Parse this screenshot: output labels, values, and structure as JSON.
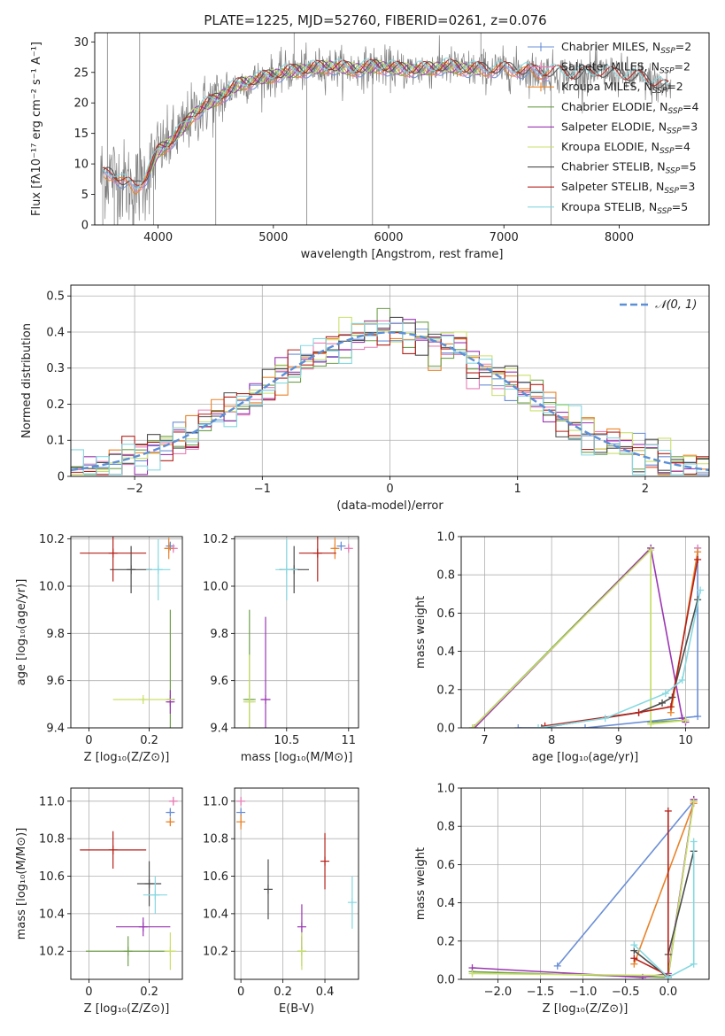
{
  "colors": {
    "chabrier_miles": "#6b8fd6",
    "salpeter_miles": "#e67fb5",
    "kroupa_miles": "#e8832a",
    "chabrier_elodie": "#6ea04a",
    "salpeter_elodie": "#9b37b3",
    "kroupa_elodie": "#c9e06a",
    "chabrier_stelib": "#4d4d4d",
    "salpeter_stelib": "#b5211a",
    "kroupa_stelib": "#86d8e0",
    "spectrum": "#808080",
    "normal_fit": "#5b8fd6"
  },
  "chart_data": [
    {
      "id": "spectrum",
      "type": "line",
      "title": "PLATE=1225, MJD=52760, FIBERID=0261, z=0.076",
      "xlabel": "wavelength [Angstrom, rest frame]",
      "ylabel": "Flux [fλ10⁻¹⁷ erg cm⁻² s⁻¹ A⁻¹]",
      "xlim": [
        3450,
        8780
      ],
      "ylim": [
        0,
        31.5
      ],
      "xticks": [
        4000,
        5000,
        6000,
        7000,
        8000
      ],
      "yticks": [
        0,
        5,
        10,
        15,
        20,
        25,
        30
      ],
      "grid": false,
      "legend": "top-right",
      "legend_entries": [
        {
          "label": "Chabrier MILES, N",
          "sub": "SSP",
          "tail": "=2",
          "color_key": "chabrier_miles"
        },
        {
          "label": "Salpeter MILES, N",
          "sub": "SSP",
          "tail": "=2",
          "color_key": "salpeter_miles"
        },
        {
          "label": "Kroupa MILES, N",
          "sub": "SSP",
          "tail": "=2",
          "color_key": "kroupa_miles"
        },
        {
          "label": "Chabrier ELODIE, N",
          "sub": "SSP",
          "tail": "=4",
          "color_key": "chabrier_elodie"
        },
        {
          "label": "Salpeter ELODIE, N",
          "sub": "SSP",
          "tail": "=3",
          "color_key": "salpeter_elodie"
        },
        {
          "label": "Kroupa ELODIE, N",
          "sub": "SSP",
          "tail": "=4",
          "color_key": "kroupa_elodie"
        },
        {
          "label": "Chabrier STELIB, N",
          "sub": "SSP",
          "tail": "=5",
          "color_key": "chabrier_stelib"
        },
        {
          "label": "Salpeter STELIB, N",
          "sub": "SSP",
          "tail": "=3",
          "color_key": "salpeter_stelib"
        },
        {
          "label": "Kroupa STELIB, N",
          "sub": "SSP",
          "tail": "=5",
          "color_key": "kroupa_stelib"
        }
      ],
      "continuum_x": [
        3500,
        3600,
        3700,
        3800,
        3900,
        4000,
        4100,
        4200,
        4300,
        4400,
        4500,
        4700,
        4900,
        5100,
        5300,
        5500,
        5700,
        5900,
        6100,
        6300,
        6500,
        6700,
        6900,
        7100,
        7300,
        7450,
        7600,
        7800,
        8000,
        8200,
        8400
      ],
      "continuum_y": [
        8,
        8.5,
        7,
        6,
        8,
        12,
        13.5,
        15.5,
        18,
        19.5,
        20.5,
        23,
        24,
        25,
        25.5,
        26,
        25.5,
        26,
        25.5,
        25.5,
        26,
        25.5,
        25.5,
        25.5,
        25,
        25,
        24.5,
        25,
        24.5,
        24,
        22.5
      ]
    },
    {
      "id": "residuals",
      "type": "histogram",
      "xlabel": "(data-model)/error",
      "ylabel": "Normed distribution",
      "xlim": [
        -2.5,
        2.5
      ],
      "ylim": [
        0,
        0.53
      ],
      "xticks": [
        -2,
        -1,
        0,
        1,
        2
      ],
      "yticks": [
        0,
        0.1,
        0.2,
        0.3,
        0.4,
        0.5
      ],
      "grid": true,
      "legend": "top-right",
      "legend_label": "𝒩(0, 1)",
      "bin_width": 0.1
    },
    {
      "id": "age_vs_Z",
      "type": "errorbar",
      "xlabel": "Z [log₁₀(Z/Z⊙)]",
      "ylabel": "age  [log₁₀(age/yr)]",
      "xlim": [
        -0.06,
        0.31
      ],
      "ylim": [
        9.4,
        10.21
      ],
      "xticks": [
        0,
        0.2
      ],
      "yticks": [
        9.4,
        9.6,
        9.8,
        10.0,
        10.2
      ],
      "grid": true,
      "points": [
        {
          "model": "chabrier_miles",
          "x": 0.27,
          "xerr": 0.01,
          "y": 10.17,
          "yerr": 0.015
        },
        {
          "model": "salpeter_miles",
          "x": 0.28,
          "xerr": 0.012,
          "y": 10.16,
          "yerr": 0.012
        },
        {
          "model": "kroupa_miles",
          "x": 0.265,
          "xerr": 0.015,
          "y": 10.16,
          "yerr": 0.045
        },
        {
          "model": "chabrier_elodie",
          "x": 0.27,
          "xerr": 0.01,
          "y": 9.52,
          "yerr": 0.38
        },
        {
          "model": "salpeter_elodie",
          "x": 0.27,
          "xerr": 0.01,
          "y": 9.51,
          "yerr": 0.05
        },
        {
          "model": "kroupa_elodie",
          "x": 0.18,
          "xerr": 0.1,
          "y": 9.52,
          "yerr": 0.01
        },
        {
          "model": "chabrier_stelib",
          "x": 0.14,
          "xerr": 0.07,
          "y": 10.07,
          "yerr": 0.1
        },
        {
          "model": "salpeter_stelib",
          "x": 0.08,
          "xerr": 0.11,
          "y": 10.14,
          "yerr": 0.12
        },
        {
          "model": "kroupa_stelib",
          "x": 0.23,
          "xerr": 0.04,
          "y": 10.07,
          "yerr": 0.13
        }
      ]
    },
    {
      "id": "age_vs_mass",
      "type": "errorbar",
      "xlabel": "mass [log₁₀(M/M⊙)]",
      "xlim": [
        10.08,
        11.08
      ],
      "ylim": [
        9.4,
        10.21
      ],
      "xticks": [
        10.5,
        11.0
      ],
      "yticks": [
        9.4,
        9.6,
        9.8,
        10.0,
        10.2
      ],
      "grid": true,
      "points": [
        {
          "model": "chabrier_miles",
          "x": 10.94,
          "xerr": 0.02,
          "y": 10.17,
          "yerr": 0.015
        },
        {
          "model": "salpeter_miles",
          "x": 11.0,
          "xerr": 0.02,
          "y": 10.16,
          "yerr": 0.012
        },
        {
          "model": "kroupa_miles",
          "x": 10.89,
          "xerr": 0.02,
          "y": 10.16,
          "yerr": 0.045
        },
        {
          "model": "chabrier_elodie",
          "x": 10.2,
          "xerr": 0.05,
          "y": 9.52,
          "yerr": 0.38
        },
        {
          "model": "salpeter_elodie",
          "x": 10.33,
          "xerr": 0.04,
          "y": 9.52,
          "yerr": 0.35
        },
        {
          "model": "kroupa_elodie",
          "x": 10.2,
          "xerr": 0.05,
          "y": 9.51,
          "yerr": 0.2
        },
        {
          "model": "chabrier_stelib",
          "x": 10.56,
          "xerr": 0.12,
          "y": 10.07,
          "yerr": 0.1
        },
        {
          "model": "salpeter_stelib",
          "x": 10.75,
          "xerr": 0.15,
          "y": 10.14,
          "yerr": 0.12
        },
        {
          "model": "kroupa_stelib",
          "x": 10.5,
          "xerr": 0.09,
          "y": 10.07,
          "yerr": 0.13
        }
      ]
    },
    {
      "id": "weight_vs_age",
      "type": "line",
      "xlabel": "age  [log₁₀(age/yr)]",
      "ylabel": "mass weight",
      "xlim": [
        6.65,
        10.35
      ],
      "ylim": [
        0,
        1.0
      ],
      "xticks": [
        7,
        8,
        9,
        10
      ],
      "yticks": [
        0,
        0.2,
        0.4,
        0.6,
        0.8,
        1.0
      ],
      "grid": true,
      "series": [
        {
          "model": "chabrier_miles",
          "x": [
            7.5,
            8.5,
            10.18,
            10.18
          ],
          "y": [
            0.0,
            0.0,
            0.06,
            0.94
          ]
        },
        {
          "model": "salpeter_miles",
          "x": [
            10.18
          ],
          "y": [
            0.94
          ]
        },
        {
          "model": "kroupa_miles",
          "x": [
            9.78,
            10.18
          ],
          "y": [
            0.08,
            0.92
          ]
        },
        {
          "model": "chabrier_elodie",
          "x": [
            6.82,
            9.48,
            9.48,
            10.0
          ],
          "y": [
            0.0,
            0.94,
            0.03,
            0.04
          ]
        },
        {
          "model": "salpeter_elodie",
          "x": [
            6.85,
            9.48,
            9.95,
            10.0
          ],
          "y": [
            0.0,
            0.94,
            0.05,
            0.03
          ]
        },
        {
          "model": "kroupa_elodie",
          "x": [
            6.82,
            9.48,
            9.48,
            10.0
          ],
          "y": [
            0.0,
            0.93,
            0.02,
            0.04
          ]
        },
        {
          "model": "chabrier_stelib",
          "x": [
            7.85,
            9.3,
            9.65,
            9.8,
            10.18
          ],
          "y": [
            0.0,
            0.08,
            0.13,
            0.16,
            0.67
          ]
        },
        {
          "model": "salpeter_stelib",
          "x": [
            7.9,
            9.3,
            9.78,
            10.18
          ],
          "y": [
            0.01,
            0.08,
            0.11,
            0.88
          ]
        },
        {
          "model": "kroupa_stelib",
          "x": [
            7.8,
            8.8,
            9.7,
            9.95,
            10.22
          ],
          "y": [
            0.0,
            0.05,
            0.18,
            0.25,
            0.72
          ]
        }
      ]
    },
    {
      "id": "mass_vs_Z",
      "type": "errorbar",
      "xlabel": "Z [log₁₀(Z/Z⊙)]",
      "ylabel": "mass [log₁₀(M/M⊙)]",
      "xlim": [
        -0.06,
        0.31
      ],
      "ylim": [
        10.05,
        11.07
      ],
      "xticks": [
        0,
        0.2
      ],
      "yticks": [
        10.2,
        10.4,
        10.6,
        10.8,
        11.0
      ],
      "grid": true,
      "points": [
        {
          "model": "chabrier_miles",
          "x": 0.27,
          "xerr": 0.01,
          "y": 10.94,
          "yerr": 0.02
        },
        {
          "model": "salpeter_miles",
          "x": 0.28,
          "xerr": 0.012,
          "y": 11.0,
          "yerr": 0.02
        },
        {
          "model": "kroupa_miles",
          "x": 0.27,
          "xerr": 0.01,
          "y": 10.89,
          "yerr": 0.02
        },
        {
          "model": "chabrier_elodie",
          "x": 0.13,
          "xerr": 0.14,
          "y": 10.2,
          "yerr": 0.08
        },
        {
          "model": "salpeter_elodie",
          "x": 0.18,
          "xerr": 0.09,
          "y": 10.33,
          "yerr": 0.05
        },
        {
          "model": "kroupa_elodie",
          "x": 0.27,
          "xerr": 0.02,
          "y": 10.2,
          "yerr": 0.1
        },
        {
          "model": "chabrier_stelib",
          "x": 0.2,
          "xerr": 0.04,
          "y": 10.56,
          "yerr": 0.12
        },
        {
          "model": "salpeter_stelib",
          "x": 0.08,
          "xerr": 0.11,
          "y": 10.74,
          "yerr": 0.1
        },
        {
          "model": "kroupa_stelib",
          "x": 0.22,
          "xerr": 0.04,
          "y": 10.5,
          "yerr": 0.1
        }
      ]
    },
    {
      "id": "mass_vs_ebv",
      "type": "errorbar",
      "xlabel": "E(B-V)",
      "xlim": [
        -0.03,
        0.56
      ],
      "ylim": [
        10.05,
        11.07
      ],
      "xticks": [
        0,
        0.2,
        0.4
      ],
      "yticks": [
        10.2,
        10.4,
        10.6,
        10.8,
        11.0
      ],
      "grid": true,
      "points": [
        {
          "model": "chabrier_miles",
          "x": 0.0,
          "xerr": 0.0,
          "y": 10.94,
          "yerr": 0.02
        },
        {
          "model": "salpeter_miles",
          "x": 0.0,
          "xerr": 0.0,
          "y": 11.0,
          "yerr": 0.02
        },
        {
          "model": "kroupa_miles",
          "x": 0.0,
          "xerr": 0.0,
          "y": 10.89,
          "yerr": 0.04
        },
        {
          "model": "chabrier_elodie",
          "x": 0.29,
          "xerr": 0.0,
          "y": 10.2,
          "yerr": 0.08
        },
        {
          "model": "salpeter_elodie",
          "x": 0.29,
          "xerr": 0.0,
          "y": 10.33,
          "yerr": 0.12
        },
        {
          "model": "kroupa_elodie",
          "x": 0.29,
          "xerr": 0.0,
          "y": 10.2,
          "yerr": 0.1
        },
        {
          "model": "chabrier_stelib",
          "x": 0.13,
          "xerr": 0.0,
          "y": 10.53,
          "yerr": 0.16
        },
        {
          "model": "salpeter_stelib",
          "x": 0.4,
          "xerr": 0.0,
          "y": 10.68,
          "yerr": 0.15
        },
        {
          "model": "kroupa_stelib",
          "x": 0.53,
          "xerr": 0.0,
          "y": 10.46,
          "yerr": 0.14
        }
      ]
    },
    {
      "id": "weight_vs_Z",
      "type": "line",
      "xlabel": "Z [log₁₀(Z/Z⊙)]",
      "ylabel": "mass weight",
      "xlim": [
        -2.43,
        0.48
      ],
      "ylim": [
        0,
        1.0
      ],
      "xticks": [
        -2.0,
        -1.5,
        -1.0,
        -0.5,
        0.0
      ],
      "yticks": [
        0,
        0.2,
        0.4,
        0.6,
        0.8,
        1.0
      ],
      "grid": true,
      "series": [
        {
          "model": "chabrier_miles",
          "x": [
            -1.3,
            0.3
          ],
          "y": [
            0.07,
            0.93
          ]
        },
        {
          "model": "salpeter_miles",
          "x": [
            0.3
          ],
          "y": [
            0.94
          ]
        },
        {
          "model": "kroupa_miles",
          "x": [
            -0.4,
            0.3
          ],
          "y": [
            0.08,
            0.92
          ]
        },
        {
          "model": "chabrier_elodie",
          "x": [
            -2.3,
            0.0,
            0.3
          ],
          "y": [
            0.04,
            0.01,
            0.94
          ]
        },
        {
          "model": "salpeter_elodie",
          "x": [
            -2.3,
            -0.3,
            0.0,
            0.3
          ],
          "y": [
            0.06,
            0.01,
            0.03,
            0.94
          ]
        },
        {
          "model": "kroupa_elodie",
          "x": [
            -2.3,
            0.0,
            0.3
          ],
          "y": [
            0.03,
            0.02,
            0.93
          ]
        },
        {
          "model": "chabrier_stelib",
          "x": [
            -0.4,
            0.0,
            0.0,
            0.3
          ],
          "y": [
            0.15,
            0.01,
            0.13,
            0.67
          ]
        },
        {
          "model": "salpeter_stelib",
          "x": [
            -0.4,
            0.0,
            0.0
          ],
          "y": [
            0.11,
            0.02,
            0.88
          ]
        },
        {
          "model": "kroupa_stelib",
          "x": [
            -0.4,
            0.0,
            0.3,
            0.3
          ],
          "y": [
            0.18,
            0.01,
            0.08,
            0.72
          ]
        }
      ]
    }
  ]
}
